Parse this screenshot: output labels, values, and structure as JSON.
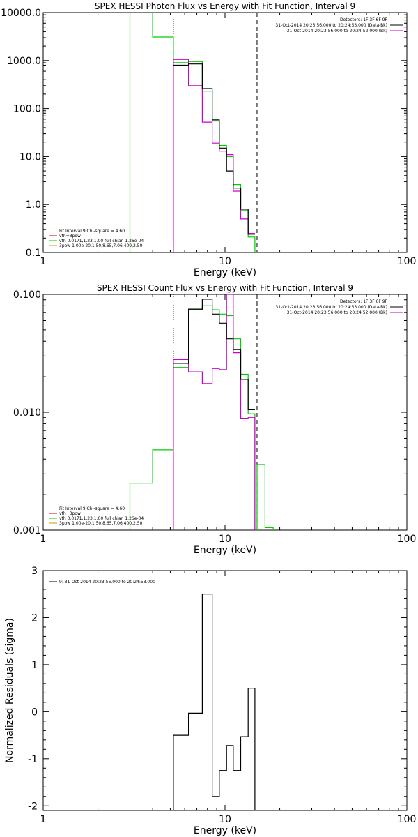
{
  "chart_data": [
    {
      "type": "line",
      "title": "SPEX HESSI Photon Flux vs Energy with Fit Function, Interval 9",
      "xlabel": "Energy (keV)",
      "ylabel": "",
      "xscale": "log",
      "yscale": "log",
      "xlim": [
        1,
        100
      ],
      "ylim": [
        0.1,
        10000
      ],
      "xticklabels": [
        "1",
        "10",
        "100"
      ],
      "yticklabels": [
        "0.1",
        "1.0",
        "10.0",
        "100.0",
        "1000.0",
        "10000.0"
      ],
      "markers": {
        "dotted": 5.2,
        "dashed": 15.0
      },
      "legend_right": [
        {
          "text": "Detectors: 1F 3F 6F 9F",
          "color": "#000000"
        },
        {
          "text": "31-Oct-2014 20:23:56.000 to 20:24:53.000 (Data-Bk)",
          "color": "#000000"
        },
        {
          "text": "31-Oct-2014 20:23:56.000 to 20:24:52.000 (Bk)",
          "color": "#cc00cc"
        }
      ],
      "legend_left": [
        {
          "text": "Fit Interval 9   Chi-square = 4.60",
          "color": "#000000"
        },
        {
          "text": "vth+3pow",
          "color": "#cc0000"
        },
        {
          "text": "vth 0.0171,1.23,1.00  full chian 1.26e-04",
          "color": "#00cc00"
        },
        {
          "text": "3pow 1.00e-20,1.50,8.65,7.06,400,2.50",
          "color": "#cc9900"
        }
      ],
      "series": [
        {
          "color": "#00cc00",
          "points": [
            [
              3.0,
              0.05
            ],
            [
              3.0,
              10000
            ],
            [
              4.0,
              10000
            ],
            [
              4.0,
              3100
            ],
            [
              5.2,
              3100
            ],
            [
              5.2,
              900
            ],
            [
              6.3,
              900
            ],
            [
              6.3,
              950
            ],
            [
              7.5,
              950
            ],
            [
              7.5,
              230
            ],
            [
              8.5,
              230
            ],
            [
              8.5,
              55
            ],
            [
              9.3,
              55
            ],
            [
              9.3,
              17
            ],
            [
              10.2,
              17
            ],
            [
              10.2,
              10
            ],
            [
              11.1,
              10
            ],
            [
              11.1,
              2.6
            ],
            [
              12.2,
              2.6
            ],
            [
              12.2,
              0.75
            ],
            [
              13.4,
              0.75
            ],
            [
              13.4,
              0.21
            ],
            [
              14.6,
              0.21
            ],
            [
              14.6,
              0.05
            ]
          ]
        },
        {
          "color": "#cc00cc",
          "points": [
            [
              5.2,
              0.05
            ],
            [
              5.2,
              1050
            ],
            [
              6.3,
              1050
            ],
            [
              6.3,
              300
            ],
            [
              7.5,
              300
            ],
            [
              7.5,
              52
            ],
            [
              8.5,
              52
            ],
            [
              8.5,
              19
            ],
            [
              9.3,
              19
            ],
            [
              9.3,
              13
            ],
            [
              10.2,
              13
            ],
            [
              10.2,
              11
            ],
            [
              11.1,
              11
            ],
            [
              11.1,
              1.9
            ],
            [
              12.2,
              1.9
            ],
            [
              12.2,
              0.5
            ],
            [
              13.4,
              0.5
            ],
            [
              13.4,
              0.25
            ],
            [
              14.6,
              0.25
            ]
          ]
        },
        {
          "color": "#000000",
          "points": [
            [
              5.2,
              800
            ],
            [
              6.3,
              800
            ],
            [
              6.3,
              850
            ],
            [
              7.5,
              850
            ],
            [
              7.5,
              260
            ],
            [
              8.5,
              260
            ],
            [
              8.5,
              58
            ],
            [
              9.3,
              58
            ],
            [
              9.3,
              15
            ],
            [
              10.2,
              15
            ],
            [
              10.2,
              5
            ],
            [
              11.1,
              5
            ],
            [
              11.1,
              2.2
            ],
            [
              12.2,
              2.2
            ],
            [
              12.2,
              0.8
            ],
            [
              13.4,
              0.8
            ],
            [
              13.4,
              0.24
            ],
            [
              14.6,
              0.24
            ]
          ]
        }
      ]
    },
    {
      "type": "line",
      "title": "SPEX HESSI Count Flux vs Energy with Fit Function, Interval 9",
      "xlabel": "Energy (keV)",
      "ylabel": "",
      "xscale": "log",
      "yscale": "log",
      "xlim": [
        1,
        100
      ],
      "ylim": [
        0.001,
        0.1
      ],
      "xticklabels": [
        "1",
        "10",
        "100"
      ],
      "yticklabels": [
        "0.001",
        "0.010",
        "0.100"
      ],
      "markers": {
        "dotted": 5.2,
        "dashed": 15.0
      },
      "legend_right": [
        {
          "text": "Detectors: 1F 3F 6F 9F",
          "color": "#000000"
        },
        {
          "text": "31-Oct-2014 20:23:56.000 to 20:24:53.000 (Data-Bk)",
          "color": "#000000"
        },
        {
          "text": "31-Oct-2014 20:23:56.000 to 20:24:52.000 (Bk)",
          "color": "#cc00cc"
        }
      ],
      "legend_left": [
        {
          "text": "Fit Interval 9   Chi-square = 4.60",
          "color": "#000000"
        },
        {
          "text": "vth+3pow",
          "color": "#cc0000"
        },
        {
          "text": "vth 0.0171,1.23,1.00  full chian 1.26e-04",
          "color": "#00cc00"
        },
        {
          "text": "3pow 1.00e-20,1.50,8.65,7.06,400,2.50",
          "color": "#cc9900"
        }
      ],
      "series": [
        {
          "color": "#00cc00",
          "points": [
            [
              3.0,
              0.0009
            ],
            [
              3.0,
              0.0025
            ],
            [
              4.0,
              0.0025
            ],
            [
              4.0,
              0.0048
            ],
            [
              5.2,
              0.0048
            ],
            [
              5.2,
              0.024
            ],
            [
              6.3,
              0.024
            ],
            [
              6.3,
              0.074
            ],
            [
              7.5,
              0.074
            ],
            [
              7.5,
              0.08
            ],
            [
              8.5,
              0.08
            ],
            [
              8.5,
              0.074
            ],
            [
              9.3,
              0.074
            ],
            [
              9.3,
              0.068
            ],
            [
              10.2,
              0.068
            ],
            [
              10.2,
              0.066
            ],
            [
              11.1,
              0.066
            ],
            [
              11.1,
              0.042
            ],
            [
              12.2,
              0.042
            ],
            [
              12.2,
              0.021
            ],
            [
              13.4,
              0.021
            ],
            [
              13.4,
              0.0097
            ],
            [
              14.6,
              0.0097
            ],
            [
              14.6,
              0.0009
            ],
            [
              15.0,
              0.0009
            ],
            [
              15.0,
              0.0036
            ],
            [
              16.6,
              0.0036
            ],
            [
              16.6,
              0.00105
            ],
            [
              18.4,
              0.00105
            ],
            [
              18.4,
              0.0009
            ]
          ]
        },
        {
          "color": "#cc00cc",
          "points": [
            [
              5.2,
              0.0009
            ],
            [
              5.2,
              0.028
            ],
            [
              6.3,
              0.028
            ],
            [
              6.3,
              0.022
            ],
            [
              7.5,
              0.022
            ],
            [
              7.5,
              0.0175
            ],
            [
              8.5,
              0.0175
            ],
            [
              8.5,
              0.0235
            ],
            [
              9.3,
              0.0235
            ],
            [
              9.3,
              0.023
            ],
            [
              10.2,
              0.023
            ],
            [
              10.2,
              0.1
            ],
            [
              11.1,
              0.1
            ],
            [
              11.1,
              0.032
            ],
            [
              12.2,
              0.032
            ],
            [
              12.2,
              0.0088
            ],
            [
              13.4,
              0.0088
            ],
            [
              13.4,
              0.009
            ],
            [
              14.6,
              0.009
            ],
            [
              14.6,
              0.0009
            ]
          ]
        },
        {
          "color": "#000000",
          "points": [
            [
              5.2,
              0.026
            ],
            [
              6.3,
              0.026
            ],
            [
              6.3,
              0.075
            ],
            [
              7.5,
              0.075
            ],
            [
              7.5,
              0.091
            ],
            [
              8.5,
              0.091
            ],
            [
              8.5,
              0.068
            ],
            [
              9.3,
              0.068
            ],
            [
              9.3,
              0.057
            ],
            [
              10.2,
              0.057
            ],
            [
              10.2,
              0.042
            ],
            [
              11.1,
              0.042
            ],
            [
              11.1,
              0.034
            ],
            [
              12.2,
              0.034
            ],
            [
              12.2,
              0.019
            ],
            [
              13.4,
              0.019
            ],
            [
              13.4,
              0.0105
            ],
            [
              14.6,
              0.0105
            ]
          ]
        }
      ]
    },
    {
      "type": "line",
      "title": "",
      "xlabel": "Energy (keV)",
      "ylabel": "Normalized Residuals (sigma)",
      "xscale": "log",
      "yscale": "linear",
      "xlim": [
        1,
        100
      ],
      "ylim": [
        -2.1,
        3
      ],
      "xticklabels": [
        "1",
        "10",
        "100"
      ],
      "yticklabels": [
        "-2",
        "-1",
        "0",
        "1",
        "2",
        "3"
      ],
      "yticks": [
        -2,
        -1,
        0,
        1,
        2,
        3
      ],
      "legend_right": [],
      "legend_left": [
        {
          "text": "9: 31-Oct-2014 20:23:56.000 to 20:24:53.000",
          "color": "#000000"
        }
      ],
      "series": [
        {
          "color": "#000000",
          "points": [
            [
              5.2,
              -2.2
            ],
            [
              5.2,
              -0.5
            ],
            [
              6.3,
              -0.5
            ],
            [
              6.3,
              -0.03
            ],
            [
              7.5,
              -0.03
            ],
            [
              7.5,
              2.5
            ],
            [
              8.5,
              2.5
            ],
            [
              8.5,
              -1.8
            ],
            [
              9.3,
              -1.8
            ],
            [
              9.3,
              -1.25
            ],
            [
              10.2,
              -1.25
            ],
            [
              10.2,
              -0.72
            ],
            [
              11.1,
              -0.72
            ],
            [
              11.1,
              -1.25
            ],
            [
              12.2,
              -1.25
            ],
            [
              12.2,
              -0.53
            ],
            [
              13.4,
              -0.53
            ],
            [
              13.4,
              0.5
            ],
            [
              14.6,
              0.5
            ],
            [
              14.6,
              -2.2
            ]
          ]
        }
      ]
    }
  ]
}
